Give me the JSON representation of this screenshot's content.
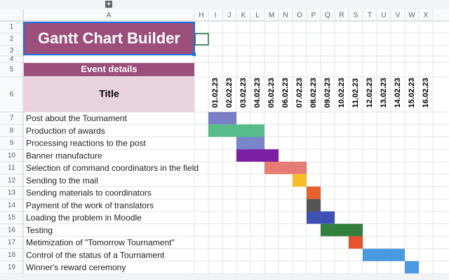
{
  "toolbar": {
    "add_button": "+"
  },
  "columns": [
    "A",
    "H",
    "I",
    "J",
    "K",
    "L",
    "M",
    "N",
    "O",
    "P",
    "Q",
    "R",
    "S",
    "T",
    "U",
    "V",
    "W",
    "X"
  ],
  "rows": [
    1,
    2,
    3,
    4,
    5,
    6,
    7,
    8,
    9,
    10,
    11,
    12,
    13,
    14,
    15,
    16,
    17,
    18,
    19
  ],
  "sheet": {
    "title": "Gantt Chart Builder",
    "section": "Event details",
    "title_header": "Title",
    "dates": [
      "01.02.23",
      "02.02.23",
      "03.02.23",
      "04.02.23",
      "05.02.23",
      "06.02.23",
      "07.02.23",
      "08.02.23",
      "09.02.23",
      "10.02.23",
      "11.02.23",
      "12.02.23",
      "13.02.23",
      "14.02.23",
      "15.02.23",
      "16.02.23"
    ],
    "tasks": [
      {
        "name": "Post about the Tournament",
        "start": "01.02.23",
        "end": "02.02.23",
        "color": "#7b80c6"
      },
      {
        "name": "Production of awards",
        "start": "01.02.23",
        "end": "04.02.23",
        "color": "#57bb8a"
      },
      {
        "name": "Processing reactions to the post",
        "start": "03.02.23",
        "end": "04.02.23",
        "color": "#7986cb"
      },
      {
        "name": "Banner manufacture",
        "start": "03.02.23",
        "end": "05.02.23",
        "color": "#7b1fa2"
      },
      {
        "name": "Selection of command coordinators in the field",
        "start": "05.02.23",
        "end": "07.02.23",
        "color": "#e67c73"
      },
      {
        "name": "Sending to the mail",
        "start": "07.02.23",
        "end": "07.02.23",
        "color": "#f6bf26"
      },
      {
        "name": "Sending materials to coordinators",
        "start": "08.02.23",
        "end": "08.02.23",
        "color": "#e8612c"
      },
      {
        "name": "Payment of the work of translators",
        "start": "08.02.23",
        "end": "08.02.23",
        "color": "#555555"
      },
      {
        "name": "Loading the problem in Moodle",
        "start": "08.02.23",
        "end": "09.02.23",
        "color": "#3f51b5"
      },
      {
        "name": "Testing",
        "start": "09.02.23",
        "end": "11.02.23",
        "color": "#33803e"
      },
      {
        "name": "Metimization of \"Tomorrow Tournament\"",
        "start": "11.02.23",
        "end": "11.02.23",
        "color": "#e6522c"
      },
      {
        "name": "Control of the status of a Tournament",
        "start": "12.02.23",
        "end": "14.02.23",
        "color": "#4a9ae1"
      },
      {
        "name": "Winner's reward ceremony",
        "start": "15.02.23",
        "end": "15.02.23",
        "color": "#4a9ae1"
      }
    ]
  }
}
